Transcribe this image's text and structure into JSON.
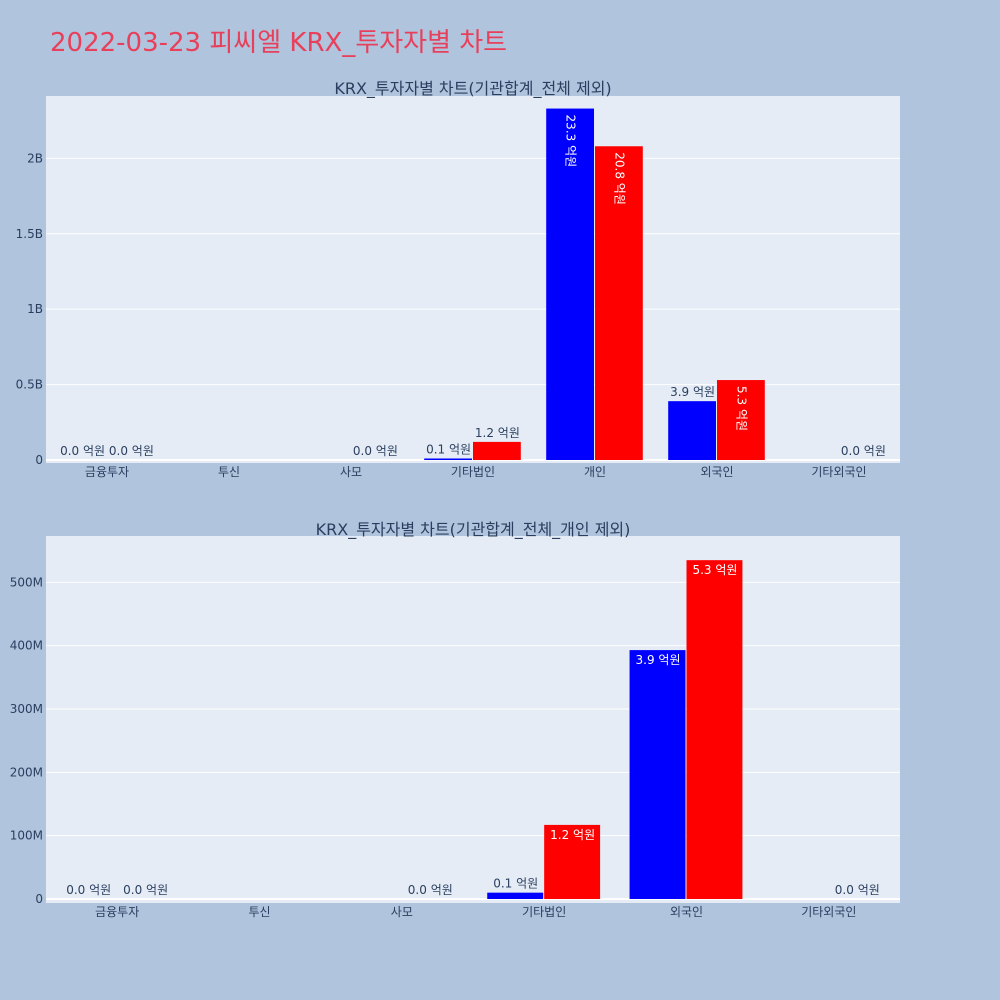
{
  "page": {
    "title": "2022-03-23 피씨엘 KRX_투자자별 차트"
  },
  "colors": {
    "background": "#b0c4de",
    "plot_bg": "#e5ecf6",
    "title": "#e8405a",
    "series_a": "#0000ff",
    "series_b": "#ff0000",
    "text": "#2a3f5f"
  },
  "chart_data": [
    {
      "type": "bar",
      "title": "KRX_투자자별 차트(기관합계_전체 제외)",
      "categories": [
        "금융투자",
        "투신",
        "사모",
        "기타법인",
        "개인",
        "외국인",
        "기타외국인"
      ],
      "ylim": [
        0,
        2400000000
      ],
      "yticks": [
        0,
        500000000,
        1000000000,
        1500000000,
        2000000000
      ],
      "yticklabels": [
        "0",
        "0.5B",
        "1B",
        "1.5B",
        "2B"
      ],
      "grid": true,
      "legend": "none",
      "series": [
        {
          "color": "#0000ff",
          "values": [
            0,
            0,
            0,
            10000000,
            2330000000,
            390000000,
            0
          ],
          "labels": [
            "0.0 억원",
            "",
            "",
            "0.1 억원",
            "23.3 억원",
            "3.9 억원",
            ""
          ]
        },
        {
          "color": "#ff0000",
          "values": [
            0,
            0,
            0,
            120000000,
            2080000000,
            530000000,
            0
          ],
          "labels": [
            "0.0 억원",
            "",
            "0.0 억원",
            "1.2 억원",
            "20.8 억원",
            "5.3 억원",
            "0.0 억원"
          ]
        }
      ]
    },
    {
      "type": "bar",
      "title": "KRX_투자자별 차트(기관합계_전체_개인 제외)",
      "categories": [
        "금융투자",
        "투신",
        "사모",
        "기타법인",
        "외국인",
        "기타외국인"
      ],
      "ylim": [
        0,
        570000000
      ],
      "yticks": [
        0,
        100000000,
        200000000,
        300000000,
        400000000,
        500000000
      ],
      "yticklabels": [
        "0",
        "100M",
        "200M",
        "300M",
        "400M",
        "500M"
      ],
      "grid": true,
      "legend": "none",
      "series": [
        {
          "color": "#0000ff",
          "values": [
            0,
            0,
            0,
            10000000,
            393000000,
            0
          ],
          "labels": [
            "0.0 억원",
            "",
            "",
            "0.1 억원",
            "3.9 억원",
            ""
          ]
        },
        {
          "color": "#ff0000",
          "values": [
            0,
            0,
            0,
            117000000,
            535000000,
            0
          ],
          "labels": [
            "0.0 억원",
            "",
            "0.0 억원",
            "1.2 억원",
            "5.3 억원",
            "0.0 억원"
          ]
        }
      ]
    }
  ]
}
